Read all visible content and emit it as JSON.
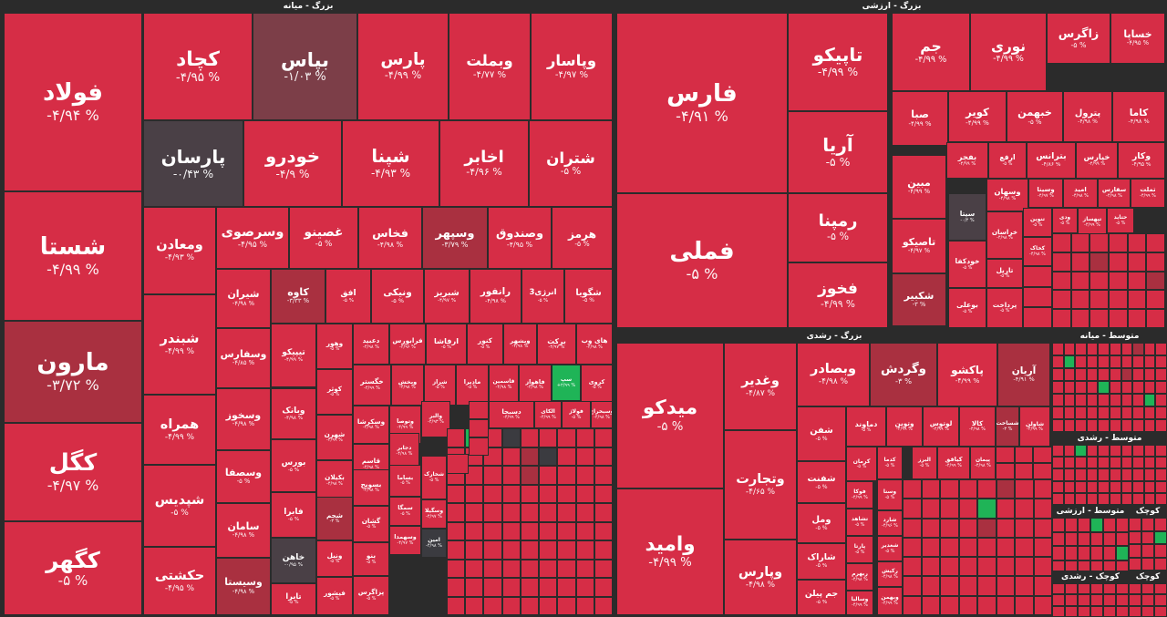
{
  "chart_data": {
    "type": "heatmap",
    "title": "",
    "colors": {
      "down": "#d62d46",
      "mid": "#a93040",
      "flat": "#4a4046",
      "muted": "#7c3e48",
      "up": "#1fb457",
      "flat_dark": "#3b3b40"
    },
    "groups": [
      {
        "name": "بزرگ - میانه",
        "tiles": [
          {
            "symbol": "فولاد",
            "change": "-۴/۹۴ %",
            "c": "down"
          },
          {
            "symbol": "شستا",
            "change": "-۴/۹۹ %",
            "c": "down"
          },
          {
            "symbol": "مارون",
            "change": "-۳/۷۲ %",
            "c": "mid"
          },
          {
            "symbol": "کگل",
            "change": "-۴/۹۷ %",
            "c": "down"
          },
          {
            "symbol": "کگهر",
            "change": "-۵ %",
            "c": "down"
          },
          {
            "symbol": "کچاد",
            "change": "-۴/۹۵ %",
            "c": "down"
          },
          {
            "symbol": "بپاس",
            "change": "-۱/۰۳ %",
            "c": "muted"
          },
          {
            "symbol": "پارس",
            "change": "-۴/۹۹ %",
            "c": "down"
          },
          {
            "symbol": "وبملت",
            "change": "-۴/۷۷ %",
            "c": "down"
          },
          {
            "symbol": "وپاسار",
            "change": "-۴/۹۷ %",
            "c": "down"
          },
          {
            "symbol": "پارسان",
            "change": "-۰/۴۳ %",
            "c": "flat"
          },
          {
            "symbol": "خودرو",
            "change": "-۴/۹ %",
            "c": "down"
          },
          {
            "symbol": "شپنا",
            "change": "-۴/۹۳ %",
            "c": "down"
          },
          {
            "symbol": "اخابر",
            "change": "-۴/۹۶ %",
            "c": "down"
          },
          {
            "symbol": "شتران",
            "change": "-۵ %",
            "c": "down"
          },
          {
            "symbol": "ومعادن",
            "change": "-۴/۹۳ %",
            "c": "down"
          },
          {
            "symbol": "شبندر",
            "change": "-۴/۹۹ %",
            "c": "down"
          },
          {
            "symbol": "همراه",
            "change": "-۴/۹۹ %",
            "c": "down"
          },
          {
            "symbol": "شپدیس",
            "change": "-۵ %",
            "c": "down"
          },
          {
            "symbol": "حکشتی",
            "change": "-۴/۹۵ %",
            "c": "down"
          },
          {
            "symbol": "وسرصوی",
            "change": "-۴/۹۵ %",
            "c": "down"
          },
          {
            "symbol": "غصینو",
            "change": "-۵ %",
            "c": "down"
          },
          {
            "symbol": "فخاس",
            "change": "-۴/۹۸ %",
            "c": "down"
          },
          {
            "symbol": "وسپهر",
            "change": "-۳/۷۹ %",
            "c": "mid"
          },
          {
            "symbol": "وصندوق",
            "change": "-۴/۹۵ %",
            "c": "down"
          },
          {
            "symbol": "هرمز",
            "change": "-۵ %",
            "c": "down"
          },
          {
            "symbol": "شیران",
            "change": "-۴/۹۸ %",
            "c": "down"
          },
          {
            "symbol": "کاوه",
            "change": "-۳/۳۳ %",
            "c": "mid"
          },
          {
            "symbol": "افق",
            "change": "-۵ %",
            "c": "down"
          },
          {
            "symbol": "ونیکی",
            "change": "-۵ %",
            "c": "down"
          },
          {
            "symbol": "شبریز",
            "change": "-۴/۹۷ %",
            "c": "down"
          },
          {
            "symbol": "رانفور",
            "change": "-۴/۹۸ %",
            "c": "down"
          },
          {
            "symbol": "انرژی3",
            "change": "-۵ %",
            "c": "down"
          },
          {
            "symbol": "شگویا",
            "change": "-۵ %",
            "c": "down"
          },
          {
            "symbol": "وسفارس",
            "change": "-۴/۸۵ %",
            "c": "down"
          },
          {
            "symbol": "تیپیکو",
            "change": "-۴/۹۹ %",
            "c": "down"
          },
          {
            "symbol": "وهور",
            "change": "-۵ %",
            "c": "down"
          },
          {
            "symbol": "دعبید",
            "change": "-۴/۹۸ %",
            "c": "down"
          },
          {
            "symbol": "فرابورس",
            "change": "-۴/۹۶ %",
            "c": "down"
          },
          {
            "symbol": "ارفاشا",
            "change": "-۵ %",
            "c": "down"
          },
          {
            "symbol": "کنور",
            "change": "-۵ %",
            "c": "down"
          },
          {
            "symbol": "وبشهر",
            "change": "-۴/۹۸ %",
            "c": "down"
          },
          {
            "symbol": "برکت",
            "change": "-۴/۹۷ %",
            "c": "down"
          },
          {
            "symbol": "های وب",
            "change": "-۴/۹۸ %",
            "c": "down"
          },
          {
            "symbol": "وسخوز",
            "change": "-۴/۹۸ %",
            "c": "down"
          },
          {
            "symbol": "وبانک",
            "change": "-۴/۹۸ %",
            "c": "down"
          },
          {
            "symbol": "کوثر",
            "change": "-۵ %",
            "c": "down"
          },
          {
            "symbol": "خگستر",
            "change": "-۴/۹۹ %",
            "c": "down"
          },
          {
            "symbol": "وبخش",
            "change": "-۴/۹۸ %",
            "c": "down"
          },
          {
            "symbol": "شراز",
            "change": "-۵ %",
            "c": "down"
          },
          {
            "symbol": "مادیرا",
            "change": "-۵ %",
            "c": "down"
          },
          {
            "symbol": "قاسمین",
            "change": "-۴/۹۸ %",
            "c": "down"
          },
          {
            "symbol": "فاهواز",
            "change": "-۴/۹۸ %",
            "c": "down"
          },
          {
            "symbol": "سپ",
            "change": "+۲/۹۹ %",
            "c": "up"
          },
          {
            "symbol": "کروی",
            "change": "-۵ %",
            "c": "down"
          },
          {
            "symbol": "وسصفا",
            "change": "-۵ %",
            "c": "down"
          },
          {
            "symbol": "بورس",
            "change": "-۵ %",
            "c": "down"
          },
          {
            "symbol": "شهرن",
            "change": "-۴/۹۹ %",
            "c": "down"
          },
          {
            "symbol": "وسکرشا",
            "change": "-۴/۹۸ %",
            "c": "down"
          },
          {
            "symbol": "وتوصا",
            "change": "-۴/۹۹ %",
            "c": "down"
          },
          {
            "symbol": "والبر",
            "change": "-۴/۹۳ %",
            "c": "down"
          },
          {
            "symbol": "دسبحا",
            "change": "-۴/۹۹ %",
            "c": "down"
          },
          {
            "symbol": "الکای",
            "change": "-۴/۹۹ %",
            "c": "down"
          },
          {
            "symbol": "فولاژ",
            "change": "-۵ %",
            "c": "down"
          },
          {
            "symbol": "وسبخراج",
            "change": "-۴/۹۸ %",
            "c": "down"
          },
          {
            "symbol": "فابرا",
            "change": "-۵ %",
            "c": "down"
          },
          {
            "symbol": "بکیلان",
            "change": "-۴/۹۸ %",
            "c": "down"
          },
          {
            "symbol": "قاسم",
            "change": "-۴/۹۸ %",
            "c": "down"
          },
          {
            "symbol": "دجابر",
            "change": "-۴/۹۸ %",
            "c": "down"
          },
          {
            "symbol": "شپلی",
            "change": "-۵ %",
            "c": "down"
          },
          {
            "symbol": "شیراز",
            "change": "-۳/۴۵ %",
            "c": "mid"
          },
          {
            "symbol": "وخاور",
            "change": "-۵ %",
            "c": "down"
          },
          {
            "symbol": "سامان",
            "change": "-۴/۹۸ %",
            "c": "down"
          },
          {
            "symbol": "خاهن",
            "change": "-۰/۹۵ %",
            "c": "flat"
          },
          {
            "symbol": "شجم",
            "change": "-۳ %",
            "c": "mid"
          },
          {
            "symbol": "بسوپح",
            "change": "-۴/۹۸ %",
            "c": "down"
          },
          {
            "symbol": "بساما",
            "change": "-۵ %",
            "c": "down"
          },
          {
            "symbol": "شخارک",
            "change": "-۵ %",
            "c": "down"
          },
          {
            "symbol": "وخارزم",
            "change": "+۲/۴۹ %",
            "c": "up"
          },
          {
            "symbol": "وسیستا",
            "change": "-۴/۹۸ %",
            "c": "mid"
          },
          {
            "symbol": "گشان",
            "change": "-۵ %",
            "c": "down"
          },
          {
            "symbol": "ونیل",
            "change": "-۵ %",
            "c": "down"
          },
          {
            "symbol": "سمگا",
            "change": "-۵ %",
            "c": "down"
          },
          {
            "symbol": "وسگیلا",
            "change": "-۴/۹۷ %",
            "c": "down"
          },
          {
            "symbol": "تایرا",
            "change": "-۵ %",
            "c": "down"
          },
          {
            "symbol": "فیشور",
            "change": "-۵ %",
            "c": "down"
          },
          {
            "symbol": "بنو",
            "change": "-۵ %",
            "c": "down"
          },
          {
            "symbol": "وسهمدا",
            "change": "-۴/۹۷ %",
            "c": "down"
          },
          {
            "symbol": "امین",
            "change": "-۴/۹۸ %",
            "c": "flat_dark"
          },
          {
            "symbol": "پزاگرس",
            "change": "-۵ %",
            "c": "down"
          }
        ]
      },
      {
        "name": "بزرگ - ارزشی",
        "tiles": [
          {
            "symbol": "فارس",
            "change": "-۴/۹۱ %",
            "c": "down"
          },
          {
            "symbol": "فملی",
            "change": "-۵ %",
            "c": "down"
          },
          {
            "symbol": "تاپیکو",
            "change": "-۴/۹۹ %",
            "c": "down"
          },
          {
            "symbol": "آریا",
            "change": "-۵ %",
            "c": "down"
          },
          {
            "symbol": "رمپنا",
            "change": "-۵ %",
            "c": "down"
          },
          {
            "symbol": "فخوز",
            "change": "-۴/۹۹ %",
            "c": "down"
          },
          {
            "symbol": "جم",
            "change": "-۴/۹۹ %",
            "c": "down"
          },
          {
            "symbol": "نوری",
            "change": "-۴/۹۹ %",
            "c": "down"
          },
          {
            "symbol": "زاگرس",
            "change": "-۵ %",
            "c": "down"
          },
          {
            "symbol": "خساپا",
            "change": "-۴/۹۵ %",
            "c": "down"
          },
          {
            "symbol": "صبا",
            "change": "-۴/۹۹ %",
            "c": "down"
          },
          {
            "symbol": "کویر",
            "change": "-۴/۹۹ %",
            "c": "down"
          },
          {
            "symbol": "خبهمن",
            "change": "-۵ %",
            "c": "down"
          },
          {
            "symbol": "پترول",
            "change": "-۴/۹۸ %",
            "c": "down"
          },
          {
            "symbol": "کاما",
            "change": "-۴/۹۸ %",
            "c": "down"
          },
          {
            "symbol": "مبین",
            "change": "-۴/۹۹ %",
            "c": "down"
          },
          {
            "symbol": "بفجر",
            "change": "-۴/۹۹ %",
            "c": "down"
          },
          {
            "symbol": "ارفع",
            "change": "-۵ %",
            "c": "down"
          },
          {
            "symbol": "بترانس",
            "change": "-۴/۸۶ %",
            "c": "down"
          },
          {
            "symbol": "خپارس",
            "change": "-۴/۹۹ %",
            "c": "down"
          },
          {
            "symbol": "وکار",
            "change": "-۴/۹۵ %",
            "c": "down"
          },
          {
            "symbol": "تاصیکو",
            "change": "-۴/۹۷ %",
            "c": "down"
          },
          {
            "symbol": "سیتا",
            "change": "-۰/۴ %",
            "c": "flat"
          },
          {
            "symbol": "وسهان",
            "change": "-۴/۹۸ %",
            "c": "down"
          },
          {
            "symbol": "وسینا",
            "change": "-۴/۹۷ %",
            "c": "down"
          },
          {
            "symbol": "امید",
            "change": "-۴/۹۸ %",
            "c": "down"
          },
          {
            "symbol": "سفارس",
            "change": "-۴/۹۸ %",
            "c": "down"
          },
          {
            "symbol": "تملت",
            "change": "-۴/۹۹ %",
            "c": "down"
          },
          {
            "symbol": "خراسان",
            "change": "-۴/۹۸ %",
            "c": "down"
          },
          {
            "symbol": "تنوین",
            "change": "-۵ %",
            "c": "down"
          },
          {
            "symbol": "ودی",
            "change": "-۵ %",
            "c": "down"
          },
          {
            "symbol": "تپهساز",
            "change": "-۴/۹۹ %",
            "c": "down"
          },
          {
            "symbol": "حتاید",
            "change": "-۵ %",
            "c": "down"
          },
          {
            "symbol": "خودکفا",
            "change": "-۵ %",
            "c": "down"
          },
          {
            "symbol": "کخاک",
            "change": "-۴/۹۸ %",
            "c": "down"
          },
          {
            "symbol": "شکبیر",
            "change": "-۳ %",
            "c": "mid"
          },
          {
            "symbol": "تاریل",
            "change": "-۵ %",
            "c": "down"
          },
          {
            "symbol": "بوعلی",
            "change": "-۵ %",
            "c": "down"
          },
          {
            "symbol": "پرداخت",
            "change": "-۵ %",
            "c": "down"
          }
        ]
      },
      {
        "name": "بزرگ - رشدی",
        "tiles": [
          {
            "symbol": "میدکو",
            "change": "-۵ %",
            "c": "down"
          },
          {
            "symbol": "وامید",
            "change": "-۴/۹۹ %",
            "c": "down"
          },
          {
            "symbol": "وغدیر",
            "change": "-۴/۸۷ %",
            "c": "down"
          },
          {
            "symbol": "وتجارت",
            "change": "-۴/۶۵ %",
            "c": "down"
          },
          {
            "symbol": "وپارس",
            "change": "-۴/۹۸ %",
            "c": "down"
          },
          {
            "symbol": "وبصادر",
            "change": "-۴/۹۸ %",
            "c": "down"
          },
          {
            "symbol": "وگردش",
            "change": "-۳ %",
            "c": "mid"
          },
          {
            "symbol": "پاکشو",
            "change": "-۴/۹۹ %",
            "c": "down"
          },
          {
            "symbol": "آریان",
            "change": "-۴/۹۱ %",
            "c": "mid"
          },
          {
            "symbol": "شفن",
            "change": "-۵ %",
            "c": "down"
          },
          {
            "symbol": "دماوند",
            "change": "-۵ %",
            "c": "down"
          },
          {
            "symbol": "وتوین",
            "change": "-۴/۹۹ %",
            "c": "down"
          },
          {
            "symbol": "لوتوس",
            "change": "-۴/۹۹ %",
            "c": "down"
          },
          {
            "symbol": "کالا",
            "change": "-۴/۹۸ %",
            "c": "down"
          },
          {
            "symbol": "شساخت",
            "change": "-۳ %",
            "c": "mid"
          },
          {
            "symbol": "شاولن",
            "change": "-۴/۹۹ %",
            "c": "down"
          },
          {
            "symbol": "کرمان",
            "change": "-۵ %",
            "c": "down"
          },
          {
            "symbol": "کدما",
            "change": "-۵ %",
            "c": "down"
          },
          {
            "symbol": "البرز",
            "change": "-۵ %",
            "c": "down"
          },
          {
            "symbol": "کیاقق",
            "change": "-۴/۹۹ %",
            "c": "down"
          },
          {
            "symbol": "پیمان",
            "change": "-۴/۹۸ %",
            "c": "down"
          },
          {
            "symbol": "شفنت",
            "change": "-۵ %",
            "c": "down"
          },
          {
            "symbol": "فوکا",
            "change": "-۴/۹۹ %",
            "c": "down"
          },
          {
            "symbol": "وسنا",
            "change": "-۵ %",
            "c": "down"
          },
          {
            "symbol": "شفا",
            "change": "-۴/۹۵ %",
            "c": "down"
          },
          {
            "symbol": "بیوند",
            "change": "-۵ %",
            "c": "down"
          },
          {
            "symbol": "والی",
            "change": "-۵ %",
            "c": "down"
          },
          {
            "symbol": "ومل",
            "change": "-۵ %",
            "c": "down"
          },
          {
            "symbol": "تشاهد",
            "change": "-۵ %",
            "c": "down"
          },
          {
            "symbol": "شارد",
            "change": "-۴/۹۶ %",
            "c": "down"
          },
          {
            "symbol": "شاراک",
            "change": "-۵ %",
            "c": "down"
          },
          {
            "symbol": "پارتا",
            "change": "-۵ %",
            "c": "down"
          },
          {
            "symbol": "شغدیر",
            "change": "-۵ %",
            "c": "down"
          },
          {
            "symbol": "ربهرم",
            "change": "-۴/۹۸ %",
            "c": "down"
          },
          {
            "symbol": "رکیش",
            "change": "-۴/۹۸ %",
            "c": "down"
          },
          {
            "symbol": "جم پیلن",
            "change": "-۵ %",
            "c": "down"
          },
          {
            "symbol": "وسالیا",
            "change": "-۴/۹۹ %",
            "c": "down"
          },
          {
            "symbol": "وبهمن",
            "change": "-۴/۹۹ %",
            "c": "down"
          }
        ]
      },
      {
        "name": "متوسط - میانه",
        "tiles": []
      },
      {
        "name": "متوسط - رشدی",
        "tiles": []
      },
      {
        "name": "متوسط - ارزشی",
        "tiles": []
      },
      {
        "name": "کوچک",
        "tiles": []
      },
      {
        "name": "کوچک - رشدی",
        "tiles": []
      },
      {
        "name": "کوچک",
        "tiles": []
      }
    ]
  }
}
